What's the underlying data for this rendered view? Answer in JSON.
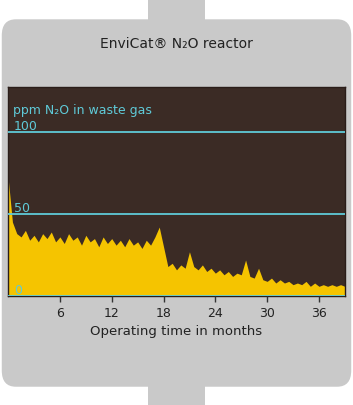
{
  "chart_data": {
    "type": "area",
    "title": "EnviCat® N₂O reactor",
    "y_label": "ppm N₂O in waste gas",
    "x_label": "Operating time in months",
    "x": [
      0,
      0.5,
      1,
      1.5,
      2,
      2.5,
      3,
      3.5,
      4,
      4.5,
      5,
      5.5,
      6,
      6.5,
      7,
      7.5,
      8,
      8.5,
      9,
      9.5,
      10,
      10.5,
      11,
      11.5,
      12,
      12.5,
      13,
      13.5,
      14,
      14.5,
      15,
      15.5,
      16,
      16.5,
      17,
      17.5,
      18,
      18.5,
      19,
      19.5,
      20,
      20.5,
      21,
      21.5,
      22,
      22.5,
      23,
      23.5,
      24,
      24.5,
      25,
      25.5,
      26,
      26.5,
      27,
      27.5,
      28,
      28.5,
      29,
      29.5,
      30,
      30.5,
      31,
      31.5,
      32,
      32.5,
      33,
      33.5,
      34,
      34.5,
      35,
      35.5,
      36,
      36.5,
      37,
      37.5,
      38,
      38.5,
      39
    ],
    "values": [
      72,
      45,
      38,
      36,
      40,
      34,
      37,
      33,
      38,
      35,
      39,
      33,
      36,
      32,
      38,
      34,
      36,
      31,
      37,
      33,
      35,
      30,
      36,
      32,
      35,
      31,
      34,
      30,
      35,
      31,
      33,
      29,
      34,
      31,
      36,
      42,
      30,
      18,
      20,
      16,
      19,
      17,
      27,
      18,
      16,
      19,
      15,
      17,
      14,
      16,
      13,
      15,
      12,
      14,
      13,
      22,
      12,
      11,
      17,
      10,
      9,
      11,
      8,
      10,
      8,
      9,
      7,
      8,
      7,
      9,
      6,
      8,
      6,
      7,
      6,
      7,
      6,
      7,
      6
    ],
    "color": "#f5c400",
    "xlim": [
      0,
      39
    ],
    "ylim": [
      0,
      127
    ],
    "xticks": [
      6,
      12,
      18,
      24,
      30,
      36
    ],
    "yticks": [
      0,
      50,
      100
    ],
    "grid": true
  }
}
